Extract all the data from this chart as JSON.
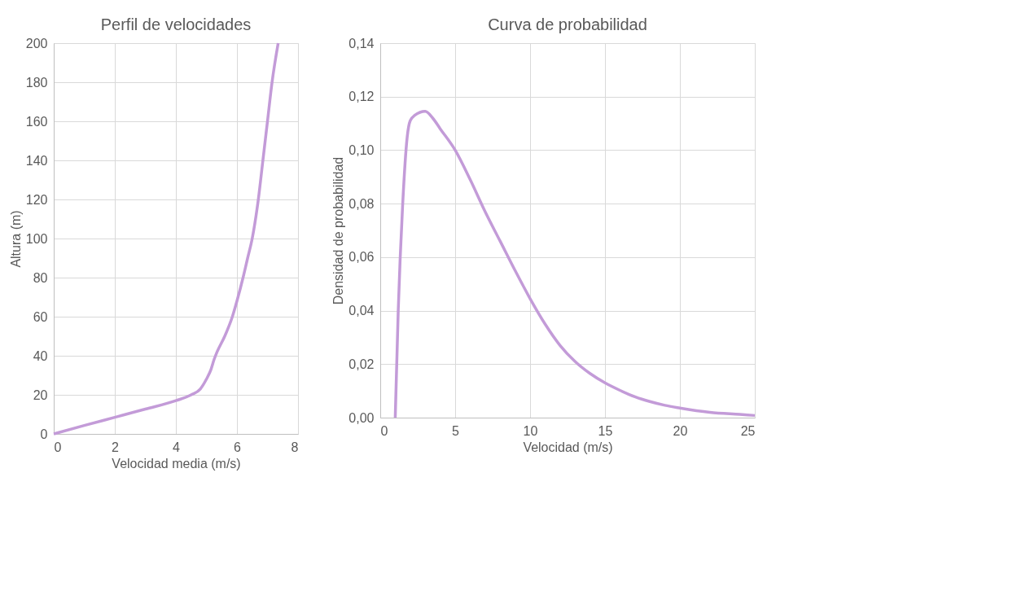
{
  "chart_data": [
    {
      "type": "line",
      "title": "Perfil de velocidades",
      "xlabel": "Velocidad media (m/s)",
      "ylabel": "Altura (m)",
      "series": [
        {
          "color": "#c39bd8",
          "x": [
            0,
            1,
            2,
            3,
            4,
            4.5,
            4.8,
            5,
            5.15,
            5.25,
            5.35,
            5.6,
            5.85,
            6.0,
            6.2,
            6.35,
            6.5,
            6.7,
            6.85,
            7.0,
            7.15,
            7.35
          ],
          "values": [
            0,
            4.3,
            8.5,
            12.7,
            17,
            20,
            23,
            28,
            33,
            38,
            42,
            50,
            60,
            68,
            80,
            90,
            100,
            120,
            140,
            160,
            180,
            200
          ]
        }
      ],
      "xlim": [
        0,
        8
      ],
      "xticks": [
        0,
        2,
        4,
        6,
        8
      ],
      "ylim": [
        0,
        200
      ],
      "yticks": [
        0,
        20,
        40,
        60,
        80,
        100,
        120,
        140,
        160,
        180,
        200
      ],
      "grid": true,
      "marker": "none",
      "line_style": "solid"
    },
    {
      "type": "line",
      "title": "Curva de probabilidad",
      "xlabel": "Velocidad (m/s)",
      "ylabel": "Densidad de probabilidad",
      "series": [
        {
          "color": "#c39bd8",
          "x": [
            1,
            1.2,
            1.5,
            1.8,
            2,
            2.3,
            3,
            3.5,
            4,
            5,
            6,
            7,
            8,
            9,
            10,
            11,
            12,
            13,
            14,
            15,
            16,
            17,
            18,
            19,
            20,
            22,
            24,
            25
          ],
          "values": [
            0,
            0.04,
            0.08,
            0.105,
            0.111,
            0.113,
            0.1145,
            0.112,
            0.108,
            0.1,
            0.089,
            0.077,
            0.066,
            0.055,
            0.0445,
            0.035,
            0.027,
            0.021,
            0.0165,
            0.013,
            0.0102,
            0.0078,
            0.006,
            0.0046,
            0.0036,
            0.002,
            0.0012,
            0.0008
          ]
        }
      ],
      "xlim": [
        0,
        25
      ],
      "xticks": [
        0,
        5,
        10,
        15,
        20,
        25
      ],
      "ylim": [
        0,
        0.14
      ],
      "yticks": [
        {
          "value": 0,
          "label": "0,00"
        },
        {
          "value": 0.02,
          "label": "0,02"
        },
        {
          "value": 0.04,
          "label": "0,04"
        },
        {
          "value": 0.06,
          "label": "0,06"
        },
        {
          "value": 0.08,
          "label": "0,08"
        },
        {
          "value": 0.1,
          "label": "0,10"
        },
        {
          "value": 0.12,
          "label": "0,12"
        },
        {
          "value": 0.14,
          "label": "0,14"
        }
      ],
      "grid": true,
      "marker": "none",
      "line_style": "solid"
    }
  ]
}
